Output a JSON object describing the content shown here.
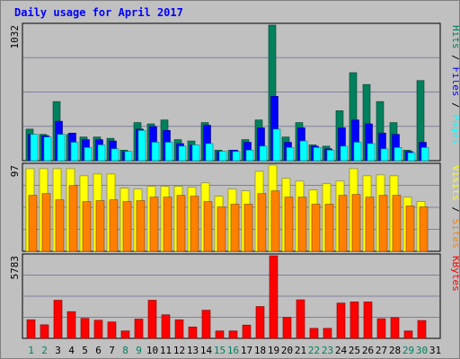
{
  "title": "Daily usage for April 2017",
  "chart_data": {
    "type": "bar",
    "title": "Daily usage for April 2017",
    "categories": [
      "1",
      "2",
      "3",
      "4",
      "5",
      "6",
      "7",
      "8",
      "9",
      "10",
      "11",
      "12",
      "13",
      "14",
      "15",
      "16",
      "17",
      "18",
      "19",
      "20",
      "21",
      "22",
      "23",
      "24",
      "25",
      "26",
      "27",
      "28",
      "29",
      "30",
      "31"
    ],
    "weekend_days": [
      "1",
      "2",
      "8",
      "9",
      "15",
      "16",
      "22",
      "23",
      "29",
      "30"
    ],
    "panels": [
      {
        "name": "top",
        "axis_max_label": "1032",
        "ymax": 1032,
        "side_labels": [
          "Pages",
          "Files",
          "Hits"
        ],
        "series": [
          {
            "name": "Hits",
            "color": "#00805c",
            "values": [
              240,
              200,
              450,
              200,
              180,
              180,
              170,
              80,
              290,
              280,
              310,
              160,
              150,
              290,
              80,
              80,
              160,
              310,
              1032,
              180,
              290,
              120,
              110,
              380,
              670,
              580,
              450,
              290,
              80,
              610,
              0
            ]
          },
          {
            "name": "Files",
            "color": "#0000ff",
            "values": [
              200,
              190,
              300,
              210,
              160,
              160,
              150,
              70,
              240,
              260,
              230,
              130,
              120,
              270,
              70,
              80,
              140,
              250,
              490,
              140,
              250,
              110,
              90,
              250,
              310,
              280,
              210,
              200,
              70,
              140,
              0
            ]
          },
          {
            "name": "Pages",
            "color": "#00ffff",
            "values": [
              200,
              180,
              200,
              140,
              100,
              120,
              90,
              70,
              230,
              140,
              140,
              110,
              120,
              130,
              70,
              70,
              80,
              110,
              240,
              100,
              150,
              100,
              80,
              110,
              140,
              130,
              90,
              100,
              60,
              100,
              0
            ]
          }
        ]
      },
      {
        "name": "middle",
        "axis_max_label": "97",
        "ymax": 97,
        "side_labels": [
          "Sites",
          "Visits"
        ],
        "series": [
          {
            "name": "Visits",
            "color": "#ffff00",
            "values": [
              93,
              93,
              93,
              93,
              85,
              87,
              87,
              71,
              70,
              73,
              73,
              73,
              72,
              77,
              62,
              70,
              68,
              90,
              97,
              82,
              79,
              69,
              76,
              79,
              93,
              85,
              86,
              85,
              61,
              56,
              0
            ]
          },
          {
            "name": "Sites",
            "color": "#ff8000",
            "values": [
              63,
              65,
              58,
              74,
              56,
              57,
              58,
              56,
              57,
              61,
              61,
              63,
              62,
              56,
              50,
              53,
              53,
              65,
              68,
              61,
              61,
              53,
              53,
              63,
              64,
              61,
              63,
              63,
              51,
              50,
              0
            ]
          }
        ]
      },
      {
        "name": "bottom",
        "axis_max_label": "5783",
        "ymax": 5783,
        "side_labels": [
          "KBytes"
        ],
        "series": [
          {
            "name": "KBytes",
            "color": "#ff0000",
            "values": [
              1300,
              950,
              2670,
              1870,
              1400,
              1270,
              1150,
              520,
              1350,
              2670,
              1650,
              1300,
              800,
              1970,
              520,
              520,
              930,
              2230,
              5783,
              1470,
              2700,
              700,
              700,
              2470,
              2550,
              2550,
              1380,
              1450,
              520,
              1250,
              0
            ]
          }
        ]
      }
    ],
    "colors": {
      "weekday_label": "#000000",
      "weekend_label": "#00805c"
    }
  }
}
